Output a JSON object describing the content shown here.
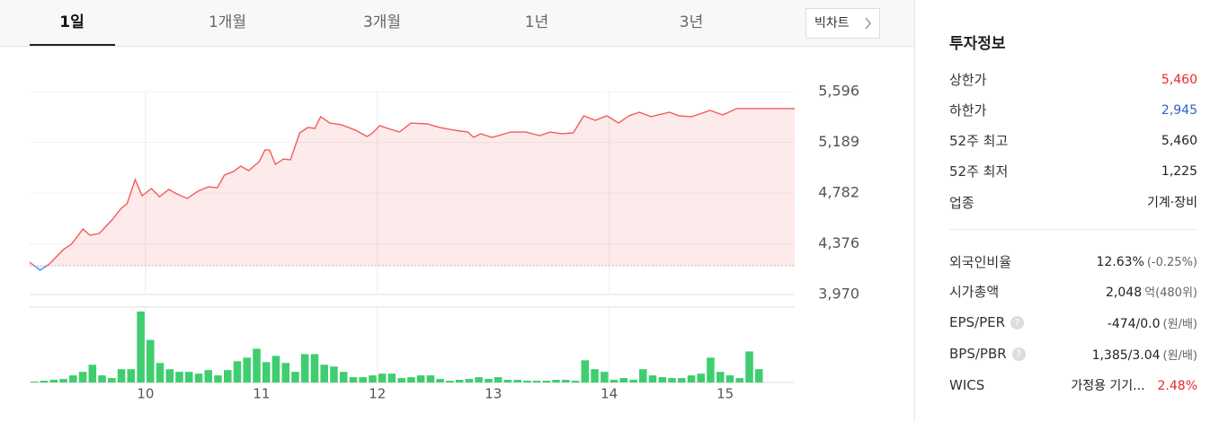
{
  "tabs": [
    "1일",
    "1개월",
    "3개월",
    "1년",
    "3년"
  ],
  "active_tab": 0,
  "big_chart_button": "빅차트",
  "chart_data": [
    {
      "type": "line",
      "x": [
        9.0,
        9.09,
        9.17,
        9.29,
        9.36,
        9.46,
        9.52,
        9.6,
        9.71,
        9.79,
        9.84,
        9.91,
        9.97,
        10.05,
        10.12,
        10.2,
        10.27,
        10.36,
        10.45,
        10.54,
        10.62,
        10.68,
        10.76,
        10.82,
        10.89,
        10.98,
        11.03,
        11.07,
        11.12,
        11.19,
        11.25,
        11.33,
        11.4,
        11.46,
        11.51,
        11.59,
        11.69,
        11.81,
        11.91,
        11.96,
        12.02,
        12.09,
        12.19,
        12.29,
        12.43,
        12.54,
        12.66,
        12.78,
        12.83,
        12.89,
        12.99,
        13.15,
        13.28,
        13.4,
        13.49,
        13.59,
        13.69,
        13.78,
        13.88,
        13.98,
        14.08,
        14.17,
        14.26,
        14.36,
        14.52,
        14.6,
        14.71,
        14.87,
        14.98,
        15.1,
        15.6
      ],
      "values": [
        4229,
        4164,
        4215,
        4330,
        4373,
        4495,
        4445,
        4459,
        4567,
        4661,
        4697,
        4891,
        4761,
        4819,
        4754,
        4812,
        4776,
        4740,
        4797,
        4833,
        4826,
        4927,
        4956,
        4999,
        4963,
        5035,
        5128,
        5128,
        5013,
        5056,
        5049,
        5265,
        5308,
        5301,
        5395,
        5344,
        5330,
        5287,
        5236,
        5265,
        5323,
        5301,
        5272,
        5344,
        5337,
        5308,
        5287,
        5272,
        5229,
        5258,
        5229,
        5272,
        5272,
        5243,
        5272,
        5258,
        5265,
        5402,
        5366,
        5402,
        5344,
        5402,
        5431,
        5395,
        5431,
        5402,
        5395,
        5445,
        5409,
        5460,
        5460
      ],
      "color": "#f25c5c",
      "down_color": "#4a90e2",
      "baseline": 4200,
      "xlim": [
        9,
        15.6
      ],
      "ylim": [
        3970,
        5596
      ],
      "yticks": [
        {
          "value": 3970,
          "label": "3,970"
        },
        {
          "value": 4376,
          "label": "4,376"
        },
        {
          "value": 4782,
          "label": "4,782"
        },
        {
          "value": 5189,
          "label": "5,189"
        },
        {
          "value": 5596,
          "label": "5,596"
        }
      ],
      "xticks": [
        10,
        11,
        12,
        13,
        14,
        15
      ],
      "grid": true
    },
    {
      "type": "bar",
      "x": [
        9,
        9.083,
        9.167,
        9.25,
        9.333,
        9.417,
        9.5,
        9.583,
        9.667,
        9.75,
        9.833,
        9.917,
        10,
        10.083,
        10.167,
        10.25,
        10.333,
        10.417,
        10.5,
        10.583,
        10.667,
        10.75,
        10.833,
        10.917,
        11,
        11.083,
        11.167,
        11.25,
        11.333,
        11.417,
        11.5,
        11.583,
        11.667,
        11.75,
        11.833,
        11.917,
        12,
        12.083,
        12.167,
        12.25,
        12.333,
        12.417,
        12.5,
        12.583,
        12.667,
        12.75,
        12.833,
        12.917,
        13,
        13.083,
        13.167,
        13.25,
        13.333,
        13.417,
        13.5,
        13.583,
        13.667,
        13.75,
        13.833,
        13.917,
        14,
        14.083,
        14.167,
        14.25,
        14.333,
        14.417,
        14.5,
        14.583,
        14.667,
        14.75,
        14.833,
        14.917,
        15,
        15.083,
        15.167,
        15.25
      ],
      "values": [
        1,
        2,
        3,
        4,
        8,
        12,
        20,
        8,
        5,
        15,
        15,
        80,
        48,
        22,
        15,
        12,
        12,
        10,
        14,
        8,
        14,
        24,
        28,
        38,
        23,
        30,
        22,
        12,
        32,
        32,
        20,
        18,
        12,
        6,
        6,
        8,
        10,
        10,
        5,
        6,
        8,
        8,
        4,
        2,
        3,
        4,
        6,
        4,
        6,
        3,
        3,
        2,
        2,
        2,
        3,
        3,
        2,
        25,
        15,
        12,
        3,
        5,
        3,
        15,
        8,
        6,
        5,
        5,
        8,
        10,
        28,
        12,
        8,
        5,
        35,
        15
      ],
      "color": "#3fce6f",
      "xlim": [
        9,
        15.6
      ],
      "ylim": [
        0,
        85
      ]
    }
  ],
  "info": {
    "title": "투자정보",
    "help_icon": "?",
    "rows": [
      {
        "label": "상한가",
        "value": "5,460",
        "color": "#e52a2a"
      },
      {
        "label": "하한가",
        "value": "2,945",
        "color": "#2f5fc4"
      },
      {
        "label": "52주 최고",
        "value": "5,460"
      },
      {
        "label": "52주 최저",
        "value": "1,225"
      },
      {
        "label": "업종",
        "value": "기계·장비"
      }
    ],
    "rows2": [
      {
        "label": "외국인비율",
        "value": "12.63%",
        "note": "(-0.25%)"
      },
      {
        "label": "시가총액",
        "value": "2,048",
        "note": "억(480위)"
      },
      {
        "label": "EPS/PER",
        "help": true,
        "value": "-474/0.0",
        "note": "(원/배)"
      },
      {
        "label": "BPS/PBR",
        "help": true,
        "value": "1,385/3.04",
        "note": "(원/배)"
      },
      {
        "label": "WICS",
        "value": "가정용 기기...",
        "note": "2.48%",
        "note_color": "#e52a2a"
      }
    ]
  }
}
